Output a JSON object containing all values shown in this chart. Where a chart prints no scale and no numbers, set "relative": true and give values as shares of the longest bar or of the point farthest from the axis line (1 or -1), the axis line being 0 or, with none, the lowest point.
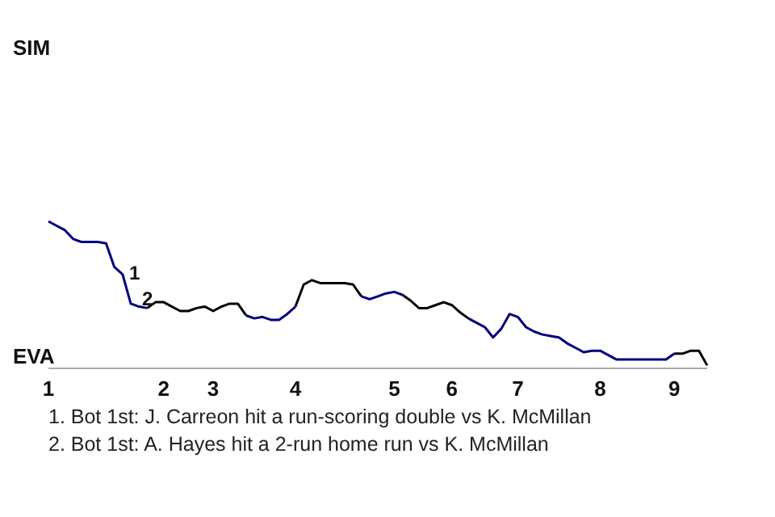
{
  "chart_data": {
    "type": "line",
    "relative": true,
    "categories": [
      "1",
      null,
      null,
      null,
      null,
      null,
      null,
      null,
      null,
      null,
      null,
      null,
      null,
      null,
      "2",
      null,
      null,
      null,
      null,
      null,
      "3",
      null,
      null,
      null,
      null,
      null,
      null,
      null,
      null,
      null,
      "4",
      null,
      null,
      null,
      null,
      null,
      null,
      null,
      null,
      null,
      null,
      null,
      "5",
      null,
      null,
      null,
      null,
      null,
      null,
      "6",
      null,
      null,
      null,
      null,
      null,
      null,
      null,
      "7",
      null,
      null,
      null,
      null,
      null,
      null,
      null,
      null,
      null,
      "8",
      null,
      null,
      null,
      null,
      null,
      null,
      null,
      null,
      "9",
      null,
      null,
      null,
      null
    ],
    "marker": "none",
    "line_style": "solid",
    "series": [
      {
        "color": "#000000",
        "values": [
          null,
          null,
          null,
          null,
          null,
          null,
          null,
          null,
          null,
          null,
          null,
          null,
          0.41,
          0.45,
          0.45,
          0.42,
          0.39,
          0.39,
          0.41,
          0.42,
          0.39,
          0.42,
          0.44,
          0.44,
          0.36,
          null,
          null,
          null,
          null,
          null,
          0.42,
          0.57,
          0.6,
          0.58,
          0.58,
          0.58,
          0.58,
          0.57,
          0.49,
          null,
          null,
          null,
          null,
          0.5,
          0.46,
          0.41,
          0.41,
          0.43,
          0.45,
          0.43,
          0.38,
          0.34,
          null,
          null,
          null,
          null,
          null,
          null,
          null,
          null,
          null,
          null,
          null,
          null,
          null,
          null,
          null,
          null,
          null,
          null,
          null,
          null,
          null,
          null,
          null,
          null,
          0.1,
          0.1,
          0.12,
          0.12,
          0.02
        ]
      },
      {
        "color": "#000080",
        "values": [
          1,
          0.97,
          0.94,
          0.88,
          0.86,
          0.86,
          0.86,
          0.85,
          0.69,
          0.64,
          0.44,
          0.42,
          0.41,
          null,
          null,
          null,
          null,
          null,
          null,
          null,
          null,
          null,
          null,
          null,
          0.36,
          0.34,
          0.35,
          0.33,
          0.33,
          0.37,
          0.42,
          null,
          null,
          null,
          null,
          null,
          null,
          null,
          0.49,
          0.47,
          0.49,
          0.51,
          0.52,
          0.5,
          null,
          null,
          null,
          null,
          null,
          null,
          null,
          0.34,
          0.31,
          0.28,
          0.21,
          0.27,
          0.37,
          0.35,
          0.28,
          0.25,
          0.23,
          0.22,
          0.21,
          0.17,
          0.14,
          0.11,
          0.12,
          0.12,
          0.09,
          0.06,
          0.06,
          0.06,
          0.06,
          0.06,
          0.06,
          0.06,
          0.1,
          null,
          null,
          null,
          null
        ]
      }
    ],
    "annotations": [
      "SIM",
      "EVA",
      "1",
      "2",
      "1. Bot 1st: J. Carreon hit a run-scoring double vs K. McMillan",
      "2. Bot 1st: A. Hayes hit a 2-run home run vs K. McMillan"
    ]
  }
}
